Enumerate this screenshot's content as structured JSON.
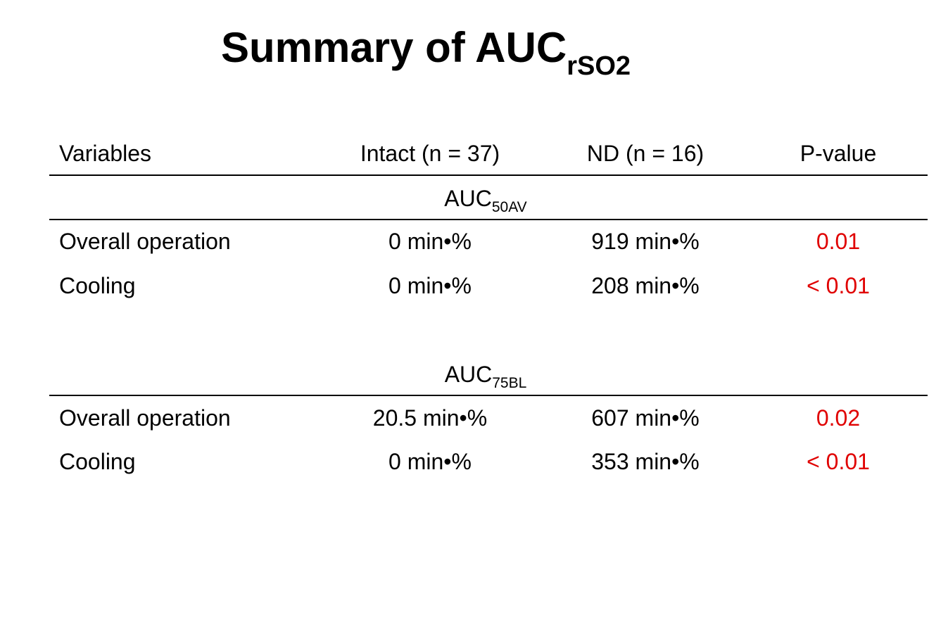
{
  "header": {
    "title": "Summary of AUC",
    "title_subscript": "rSO2"
  },
  "table": {
    "columns": [
      "Variables",
      "Intact (n = 37)",
      "ND (n = 16)",
      "P-value"
    ],
    "sections": [
      {
        "label": "AUC",
        "label_subscript": "50AV",
        "rows": [
          [
            "Overall operation",
            "0 min•%",
            "919 min•%",
            "0.01"
          ],
          [
            "Cooling",
            "0 min•%",
            "208 min•%",
            "< 0.01"
          ]
        ]
      },
      {
        "label": "AUC",
        "label_subscript": "75BL",
        "rows": [
          [
            "Overall operation",
            "20.5 min•%",
            "607 min•%",
            "0.02"
          ],
          [
            "Cooling",
            "0 min•%",
            "353 min•%",
            "< 0.01"
          ]
        ]
      }
    ]
  }
}
